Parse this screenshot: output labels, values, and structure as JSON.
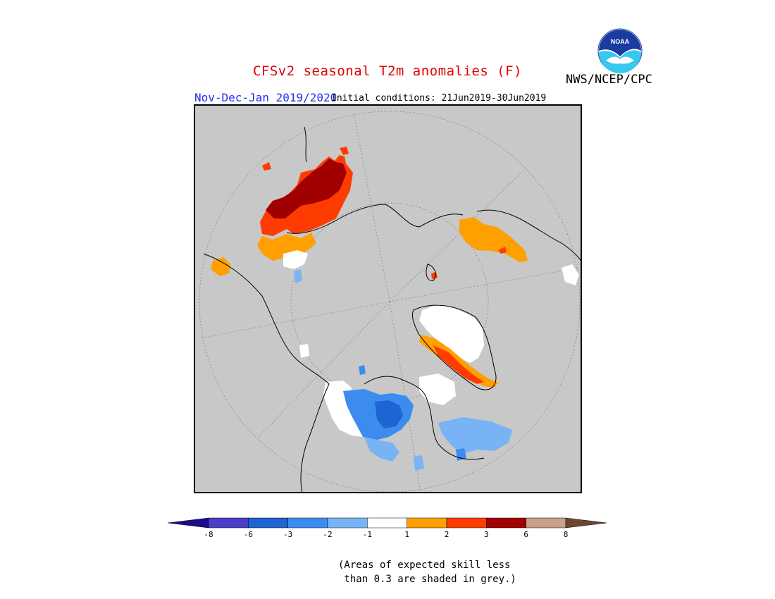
{
  "title": "CFSv2 seasonal T2m anomalies (F)",
  "agency": "NWS/NCEP/CPC",
  "logo_text": "NOAA",
  "season_label": "Nov-Dec-Jan 2019/2020",
  "initial_conditions": "Initial conditions: 21Jun2019-30Jun2019",
  "colors": {
    "grey_mask": "#c8c8c8",
    "lt_minus8": "#1a0c8c",
    "m8_m6": "#4b3ec8",
    "m6_m3": "#1e64d2",
    "m3_m2": "#3c8cf0",
    "m2_m1": "#78b4f5",
    "m1_1": "#ffffff",
    "p1_p2": "#ffa000",
    "p2_p3": "#ff3c00",
    "p3_p6": "#a00000",
    "p6_p8": "#c8a08c",
    "gt_p8": "#6e4632"
  },
  "legend": {
    "tick_labels": [
      "-8",
      "-6",
      "-3",
      "-2",
      "-1",
      "1",
      "2",
      "3",
      "6",
      "8"
    ],
    "bins": [
      {
        "min": -8,
        "max": -6,
        "color": "#4b3ec8"
      },
      {
        "min": -6,
        "max": -3,
        "color": "#1e64d2"
      },
      {
        "min": -3,
        "max": -2,
        "color": "#3c8cf0"
      },
      {
        "min": -2,
        "max": -1,
        "color": "#78b4f5"
      },
      {
        "min": -1,
        "max": 1,
        "color": "#ffffff"
      },
      {
        "min": 1,
        "max": 2,
        "color": "#ffa000"
      },
      {
        "min": 2,
        "max": 3,
        "color": "#ff3c00"
      },
      {
        "min": 3,
        "max": 6,
        "color": "#a00000"
      },
      {
        "min": 6,
        "max": 8,
        "color": "#c8a08c"
      }
    ]
  },
  "note": "(Areas of expected skill less\n than 0.3 are shaded in grey.)"
}
